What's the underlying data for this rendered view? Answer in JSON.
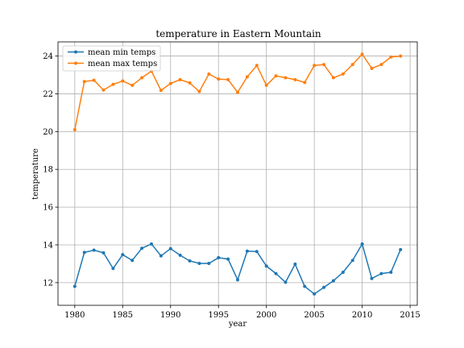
{
  "chart_data": {
    "type": "line",
    "title": "temperature in Eastern Mountain",
    "xlabel": "year",
    "ylabel": "temperature",
    "xlim": [
      1978.25,
      2015.75
    ],
    "ylim": [
      10.8,
      24.75
    ],
    "xticks": [
      1980,
      1985,
      1990,
      1995,
      2000,
      2005,
      2010,
      2015
    ],
    "yticks": [
      12,
      14,
      16,
      18,
      20,
      22,
      24
    ],
    "grid": true,
    "legend_position": "top-left",
    "x": [
      1980,
      1981,
      1982,
      1983,
      1984,
      1985,
      1986,
      1987,
      1988,
      1989,
      1990,
      1991,
      1992,
      1993,
      1994,
      1995,
      1996,
      1997,
      1998,
      1999,
      2000,
      2001,
      2002,
      2003,
      2004,
      2005,
      2006,
      2007,
      2008,
      2009,
      2010,
      2011,
      2012,
      2013,
      2014
    ],
    "series": [
      {
        "name": "mean min temps",
        "color": "#1f77b4",
        "values": [
          11.8,
          13.6,
          13.72,
          13.58,
          12.75,
          13.48,
          13.18,
          13.82,
          14.05,
          13.42,
          13.8,
          13.45,
          13.15,
          13.02,
          13.02,
          13.32,
          13.25,
          12.15,
          13.67,
          13.65,
          12.88,
          12.48,
          12.02,
          12.98,
          11.8,
          11.4,
          11.75,
          12.1,
          12.55,
          13.18,
          14.05,
          12.22,
          12.48,
          12.55,
          13.75
        ]
      },
      {
        "name": "mean max temps",
        "color": "#ff7f0e",
        "values": [
          20.1,
          22.65,
          22.72,
          22.2,
          22.5,
          22.68,
          22.45,
          22.85,
          23.2,
          22.18,
          22.55,
          22.75,
          22.58,
          22.12,
          23.05,
          22.78,
          22.75,
          22.08,
          22.9,
          23.5,
          22.45,
          22.95,
          22.85,
          22.75,
          22.6,
          23.5,
          23.55,
          22.85,
          23.05,
          23.55,
          24.1,
          23.35,
          23.55,
          23.95,
          24.0
        ]
      }
    ]
  }
}
